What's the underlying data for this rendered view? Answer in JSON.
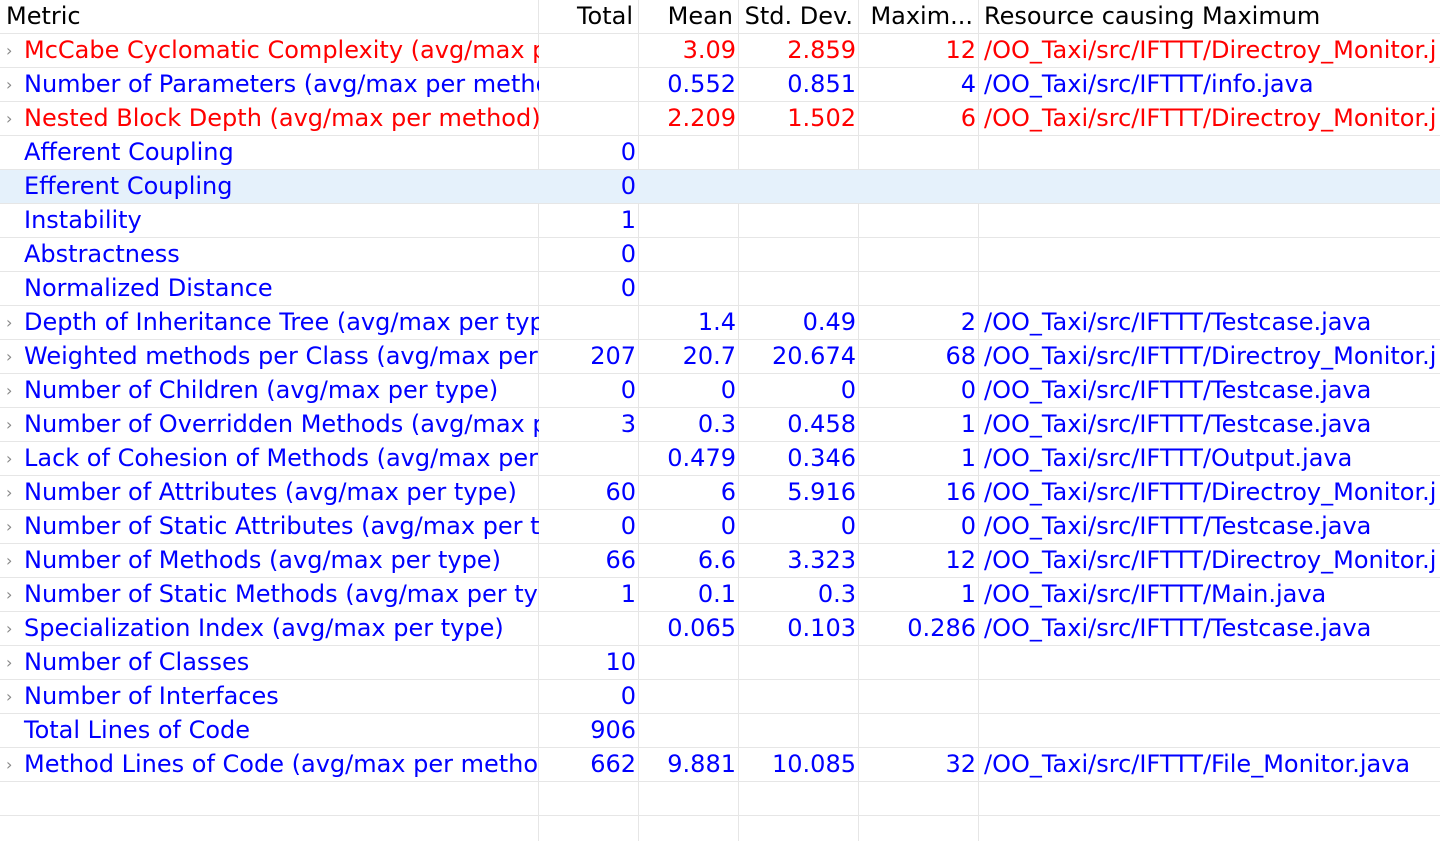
{
  "colors": {
    "normal": "#0000ff",
    "warning": "#ff0000",
    "selected_bg": "#e5f1fb"
  },
  "headers": {
    "metric": "Metric",
    "total": "Total",
    "mean": "Mean",
    "std_dev": "Std. Dev.",
    "maximum": "Maxim...",
    "resource": "Resource causing Maximum"
  },
  "rows": [
    {
      "name": "McCabe Cyclomatic Complexity (avg/max per",
      "total": "",
      "mean": "3.09",
      "std": "2.859",
      "max": "12",
      "resource": "/OO_Taxi/src/IFTTT/Directroy_Monitor.j",
      "color": "red",
      "expandable": true
    },
    {
      "name": "Number of Parameters (avg/max per method",
      "total": "",
      "mean": "0.552",
      "std": "0.851",
      "max": "4",
      "resource": "/OO_Taxi/src/IFTTT/info.java",
      "color": "blue",
      "expandable": true
    },
    {
      "name": "Nested Block Depth (avg/max per method)",
      "total": "",
      "mean": "2.209",
      "std": "1.502",
      "max": "6",
      "resource": "/OO_Taxi/src/IFTTT/Directroy_Monitor.j",
      "color": "red",
      "expandable": true
    },
    {
      "name": "Afferent Coupling",
      "total": "0",
      "mean": "",
      "std": "",
      "max": "",
      "resource": "",
      "color": "blue",
      "expandable": false
    },
    {
      "name": "Efferent Coupling",
      "total": "0",
      "mean": "",
      "std": "",
      "max": "",
      "resource": "",
      "color": "blue",
      "expandable": false,
      "selected": true
    },
    {
      "name": "Instability",
      "total": "1",
      "mean": "",
      "std": "",
      "max": "",
      "resource": "",
      "color": "blue",
      "expandable": false
    },
    {
      "name": "Abstractness",
      "total": "0",
      "mean": "",
      "std": "",
      "max": "",
      "resource": "",
      "color": "blue",
      "expandable": false
    },
    {
      "name": "Normalized Distance",
      "total": "0",
      "mean": "",
      "std": "",
      "max": "",
      "resource": "",
      "color": "blue",
      "expandable": false
    },
    {
      "name": "Depth of Inheritance Tree (avg/max per type)",
      "total": "",
      "mean": "1.4",
      "std": "0.49",
      "max": "2",
      "resource": "/OO_Taxi/src/IFTTT/Testcase.java",
      "color": "blue",
      "expandable": true
    },
    {
      "name": "Weighted methods per Class (avg/max per ty",
      "total": "207",
      "mean": "20.7",
      "std": "20.674",
      "max": "68",
      "resource": "/OO_Taxi/src/IFTTT/Directroy_Monitor.j",
      "color": "blue",
      "expandable": true
    },
    {
      "name": "Number of Children (avg/max per type)",
      "total": "0",
      "mean": "0",
      "std": "0",
      "max": "0",
      "resource": "/OO_Taxi/src/IFTTT/Testcase.java",
      "color": "blue",
      "expandable": true
    },
    {
      "name": "Number of Overridden Methods (avg/max pe",
      "total": "3",
      "mean": "0.3",
      "std": "0.458",
      "max": "1",
      "resource": "/OO_Taxi/src/IFTTT/Testcase.java",
      "color": "blue",
      "expandable": true
    },
    {
      "name": "Lack of Cohesion of Methods (avg/max per ty",
      "total": "",
      "mean": "0.479",
      "std": "0.346",
      "max": "1",
      "resource": "/OO_Taxi/src/IFTTT/Output.java",
      "color": "blue",
      "expandable": true
    },
    {
      "name": "Number of Attributes (avg/max per type)",
      "total": "60",
      "mean": "6",
      "std": "5.916",
      "max": "16",
      "resource": "/OO_Taxi/src/IFTTT/Directroy_Monitor.j",
      "color": "blue",
      "expandable": true
    },
    {
      "name": "Number of Static Attributes (avg/max per typ",
      "total": "0",
      "mean": "0",
      "std": "0",
      "max": "0",
      "resource": "/OO_Taxi/src/IFTTT/Testcase.java",
      "color": "blue",
      "expandable": true
    },
    {
      "name": "Number of Methods (avg/max per type)",
      "total": "66",
      "mean": "6.6",
      "std": "3.323",
      "max": "12",
      "resource": "/OO_Taxi/src/IFTTT/Directroy_Monitor.j",
      "color": "blue",
      "expandable": true
    },
    {
      "name": "Number of Static Methods (avg/max per type",
      "total": "1",
      "mean": "0.1",
      "std": "0.3",
      "max": "1",
      "resource": "/OO_Taxi/src/IFTTT/Main.java",
      "color": "blue",
      "expandable": true
    },
    {
      "name": "Specialization Index (avg/max per type)",
      "total": "",
      "mean": "0.065",
      "std": "0.103",
      "max": "0.286",
      "resource": "/OO_Taxi/src/IFTTT/Testcase.java",
      "color": "blue",
      "expandable": true
    },
    {
      "name": "Number of Classes",
      "total": "10",
      "mean": "",
      "std": "",
      "max": "",
      "resource": "",
      "color": "blue",
      "expandable": true
    },
    {
      "name": "Number of Interfaces",
      "total": "0",
      "mean": "",
      "std": "",
      "max": "",
      "resource": "",
      "color": "blue",
      "expandable": true
    },
    {
      "name": "Total Lines of Code",
      "total": "906",
      "mean": "",
      "std": "",
      "max": "",
      "resource": "",
      "color": "blue",
      "expandable": false
    },
    {
      "name": "Method Lines of Code (avg/max per method)",
      "total": "662",
      "mean": "9.881",
      "std": "10.085",
      "max": "32",
      "resource": "/OO_Taxi/src/IFTTT/File_Monitor.java",
      "color": "blue",
      "expandable": true
    }
  ]
}
